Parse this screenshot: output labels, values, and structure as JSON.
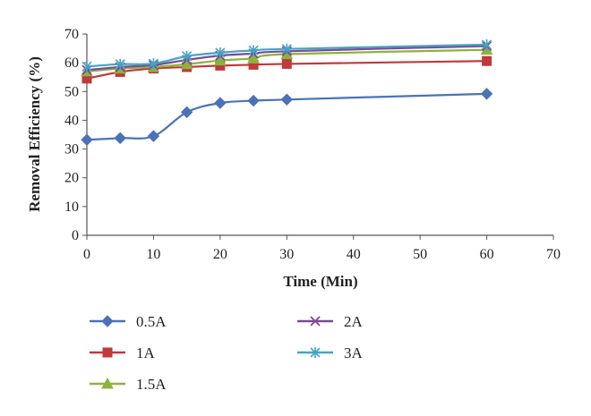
{
  "chart_data": {
    "type": "line",
    "xlabel": "Time (Min)",
    "ylabel": "Removal Efficiency (%)",
    "xlim": [
      0,
      70
    ],
    "ylim": [
      0,
      70
    ],
    "xticks": [
      0,
      10,
      20,
      30,
      40,
      50,
      60,
      70
    ],
    "yticks": [
      0,
      10,
      20,
      30,
      40,
      50,
      60,
      70
    ],
    "grid": false,
    "legend_position": "bottom",
    "x": [
      0,
      5,
      10,
      15,
      20,
      25,
      30,
      60
    ],
    "series": [
      {
        "name": "0.5A",
        "values": [
          33.2,
          33.8,
          34.5,
          42.8,
          46.0,
          46.8,
          47.2,
          49.2
        ],
        "color": "#4a72b8",
        "marker": "diamond"
      },
      {
        "name": "1A",
        "values": [
          54.5,
          56.8,
          58.0,
          58.5,
          59.0,
          59.3,
          59.6,
          60.6
        ],
        "color": "#c0393b",
        "marker": "square"
      },
      {
        "name": "1.5A",
        "values": [
          57.0,
          58.0,
          58.5,
          59.5,
          60.8,
          61.5,
          63.0,
          64.5
        ],
        "color": "#8db33c",
        "marker": "triangle"
      },
      {
        "name": "2A",
        "values": [
          57.5,
          58.5,
          59.2,
          61.0,
          62.5,
          63.2,
          64.0,
          65.8
        ],
        "color": "#7a4a94",
        "marker": "x"
      },
      {
        "name": "3A",
        "values": [
          58.7,
          59.5,
          59.7,
          62.3,
          63.5,
          64.3,
          64.8,
          66.3
        ],
        "color": "#45a4c6",
        "marker": "star"
      }
    ]
  }
}
